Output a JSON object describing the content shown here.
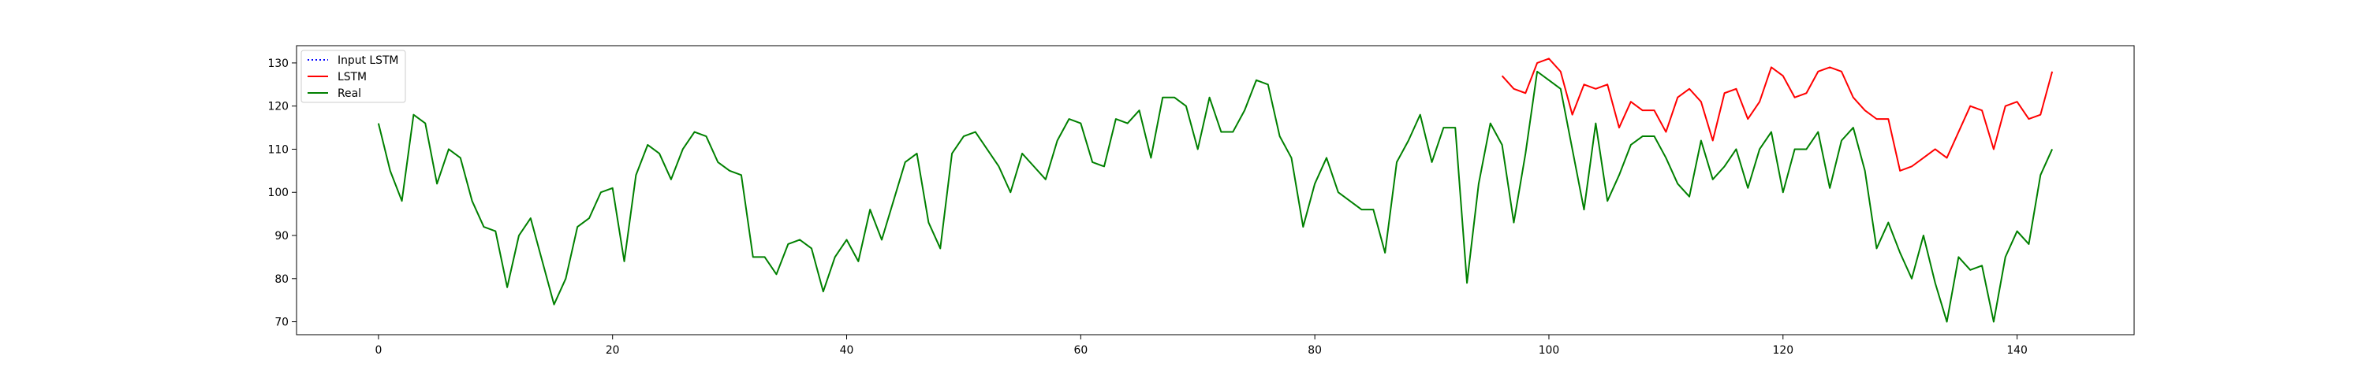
{
  "chart_data": {
    "type": "line",
    "xlim": [
      -7,
      150
    ],
    "ylim": [
      67,
      134
    ],
    "x_ticks": [
      0,
      20,
      40,
      60,
      80,
      100,
      120,
      140
    ],
    "y_ticks": [
      70,
      80,
      90,
      100,
      110,
      120,
      130
    ],
    "grid": false,
    "legend_position": "top-left",
    "legend": [
      {
        "label": "Input LSTM",
        "color": "#0000ff",
        "style": "dotted"
      },
      {
        "label": "LSTM",
        "color": "#ff0000",
        "style": "solid"
      },
      {
        "label": "Real",
        "color": "#008000",
        "style": "solid"
      }
    ],
    "series": [
      {
        "name": "Real",
        "color": "#008000",
        "x_start": 0,
        "values": [
          116,
          105,
          98,
          118,
          116,
          102,
          110,
          108,
          98,
          92,
          91,
          78,
          90,
          94,
          84,
          74,
          80,
          92,
          94,
          100,
          101,
          84,
          104,
          111,
          109,
          103,
          110,
          114,
          113,
          107,
          105,
          104,
          85,
          85,
          81,
          88,
          89,
          87,
          77,
          85,
          89,
          84,
          96,
          89,
          98,
          107,
          109,
          93,
          87,
          109,
          113,
          114,
          110,
          106,
          100,
          109,
          106,
          103,
          112,
          117,
          116,
          107,
          106,
          117,
          116,
          119,
          108,
          122,
          122,
          120,
          110,
          122,
          114,
          114,
          119,
          126,
          125,
          113,
          108,
          92,
          102,
          108,
          100,
          98,
          96,
          96,
          86,
          107,
          112,
          118,
          107,
          115,
          115,
          79,
          102,
          116,
          111,
          93,
          109,
          128,
          126,
          124,
          110,
          96,
          116,
          98,
          104,
          111,
          113,
          113,
          108,
          102,
          99,
          112,
          103,
          106,
          110,
          101,
          110,
          114,
          100,
          110,
          110,
          114,
          101,
          112,
          115,
          105,
          87,
          93,
          86,
          80,
          90,
          79,
          70,
          85,
          82,
          83,
          70,
          85,
          91,
          88,
          104,
          110
        ]
      },
      {
        "name": "LSTM",
        "color": "#ff0000",
        "x_start": 96,
        "values": [
          127,
          124,
          123,
          130,
          131,
          128,
          118,
          125,
          124,
          125,
          115,
          121,
          119,
          119,
          114,
          122,
          124,
          121,
          112,
          123,
          124,
          117,
          121,
          129,
          127,
          122,
          123,
          128,
          129,
          128,
          122,
          119,
          117,
          117,
          105,
          106,
          108,
          110,
          108,
          114,
          120,
          119,
          110,
          120,
          121,
          117,
          118,
          128
        ]
      }
    ]
  }
}
